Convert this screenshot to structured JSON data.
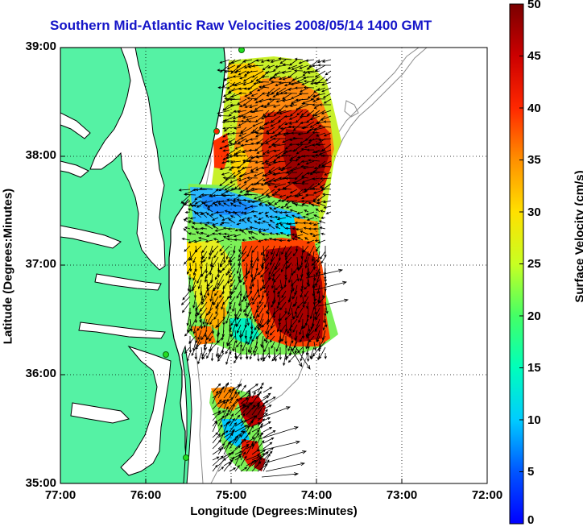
{
  "title": "Southern Mid-Atlantic Raw Velocities 2008/05/14 1400 GMT",
  "xlabel": "Longitude (Degrees:Minutes)",
  "ylabel": "Latitude (Degrees:Minutes)",
  "colorbar": {
    "label": "Surface Velocity (cm/s)",
    "ticks": [
      "0",
      "5",
      "10",
      "15",
      "20",
      "25",
      "30",
      "35",
      "40",
      "45",
      "50"
    ],
    "range": [
      0,
      50
    ]
  },
  "axes": {
    "xticks": [
      "77:00",
      "76:00",
      "75:00",
      "74:00",
      "73:00",
      "72:00"
    ],
    "yticks": [
      "39:00",
      "38:00",
      "37:00",
      "36:00",
      "35:00"
    ],
    "xlim": [
      -77,
      -72
    ],
    "ylim": [
      35,
      39
    ]
  },
  "colors": {
    "land": "#55f2a4",
    "coast": "#000000",
    "bathymetry": "#8c8c8c",
    "title": "#1515c8",
    "station": "#22dd22"
  }
}
